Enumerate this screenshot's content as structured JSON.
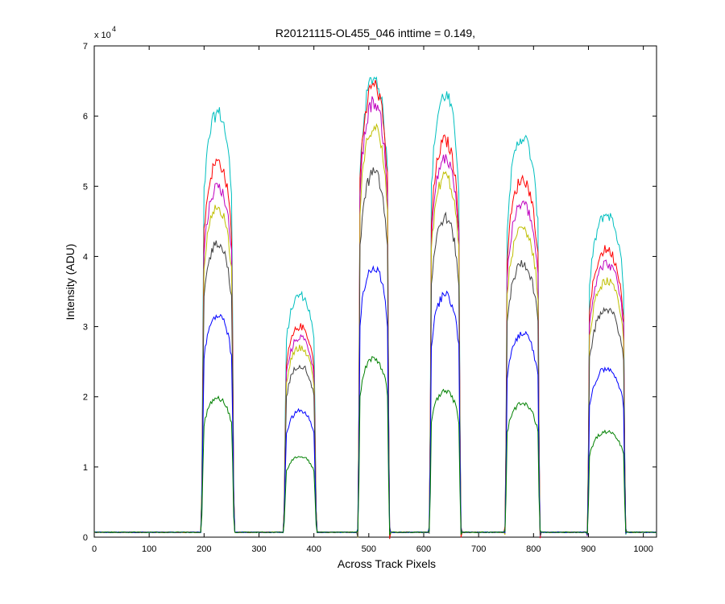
{
  "chart_data": {
    "type": "line",
    "title": "R20121115-OL455_046 inttime = 0.149,",
    "xlabel": "Across Track Pixels",
    "ylabel": "Intensity (ADU)",
    "y_exponent_label": "x 10",
    "y_exponent_power": "4",
    "xlim": [
      0,
      1024
    ],
    "ylim": [
      0,
      70000
    ],
    "xticks": [
      0,
      100,
      200,
      300,
      400,
      500,
      600,
      700,
      800,
      900,
      1000
    ],
    "yticks": [
      0,
      10000,
      20000,
      30000,
      40000,
      50000,
      60000,
      70000
    ],
    "ytick_labels": [
      "0",
      "1",
      "2",
      "3",
      "4",
      "5",
      "6",
      "7"
    ],
    "grid": false,
    "baseline": 700,
    "saturation": 65535,
    "bumps": [
      {
        "x_start": 195,
        "x_end": 255
      },
      {
        "x_start": 345,
        "x_end": 405
      },
      {
        "x_start": 480,
        "x_end": 538
      },
      {
        "x_start": 610,
        "x_end": 668
      },
      {
        "x_start": 748,
        "x_end": 812
      },
      {
        "x_start": 898,
        "x_end": 968
      }
    ],
    "series": [
      {
        "name": "cyan",
        "color": "#00bfbf",
        "peaks": [
          60500,
          34500,
          65535,
          63000,
          57000,
          46000
        ]
      },
      {
        "name": "red",
        "color": "#ff0000",
        "peaks": [
          53500,
          30000,
          64500,
          56500,
          51000,
          41000
        ]
      },
      {
        "name": "magenta",
        "color": "#bf00bf",
        "peaks": [
          50000,
          28500,
          62000,
          54000,
          47500,
          39000
        ]
      },
      {
        "name": "yellow",
        "color": "#bfbf00",
        "peaks": [
          47000,
          27000,
          58500,
          51500,
          44000,
          36500
        ]
      },
      {
        "name": "black",
        "color": "#404040",
        "peaks": [
          42000,
          24500,
          52000,
          45500,
          39000,
          32500
        ]
      },
      {
        "name": "blue",
        "color": "#0000ff",
        "peaks": [
          31500,
          18000,
          38500,
          34500,
          29000,
          24000
        ]
      },
      {
        "name": "green",
        "color": "#008000",
        "peaks": [
          19800,
          11500,
          25500,
          20800,
          19000,
          15000
        ]
      }
    ]
  }
}
